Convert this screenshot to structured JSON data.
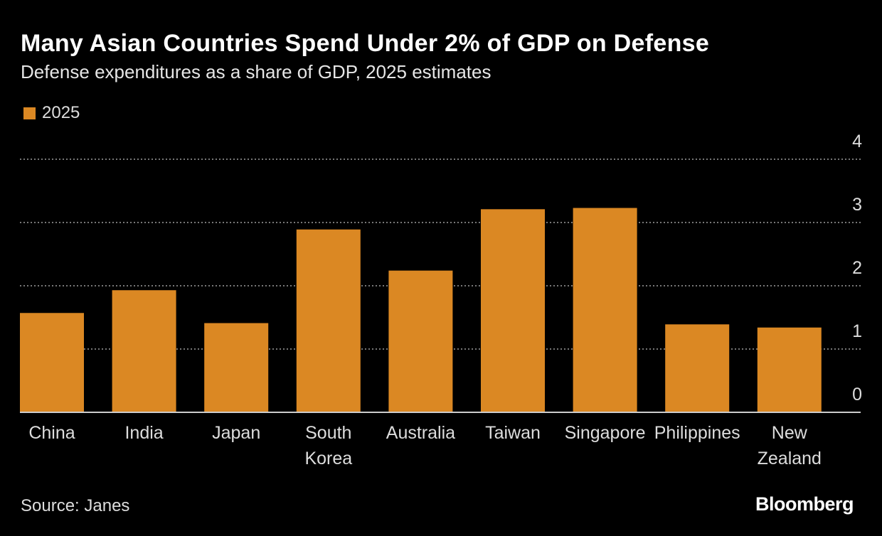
{
  "title": "Many Asian Countries Spend Under 2% of GDP on Defense",
  "subtitle": "Defense expenditures as a share of GDP, 2025 estimates",
  "source": "Source: Janes",
  "logo": "Bloomberg",
  "colors": {
    "bar": "#db8823",
    "background": "#000000",
    "grid": "#777777"
  },
  "chart_data": {
    "type": "bar",
    "categories": [
      "China",
      "India",
      "Japan",
      "South Korea",
      "Australia",
      "Taiwan",
      "Singapore",
      "Philippines",
      "New Zealand"
    ],
    "category_lines": [
      [
        "China"
      ],
      [
        "India"
      ],
      [
        "Japan"
      ],
      [
        "South",
        "Korea"
      ],
      [
        "Australia"
      ],
      [
        "Taiwan"
      ],
      [
        "Singapore"
      ],
      [
        "Philippines"
      ],
      [
        "New",
        "Zealand"
      ]
    ],
    "series": [
      {
        "name": "2025",
        "values": [
          1.57,
          1.93,
          1.41,
          2.89,
          2.24,
          3.21,
          3.23,
          1.39,
          1.34
        ]
      }
    ],
    "ylim": [
      0,
      4
    ],
    "yticks": [
      "0",
      "1",
      "2",
      "3",
      "4"
    ],
    "grid": true,
    "y_axis_side": "right",
    "legend": "top-left"
  }
}
